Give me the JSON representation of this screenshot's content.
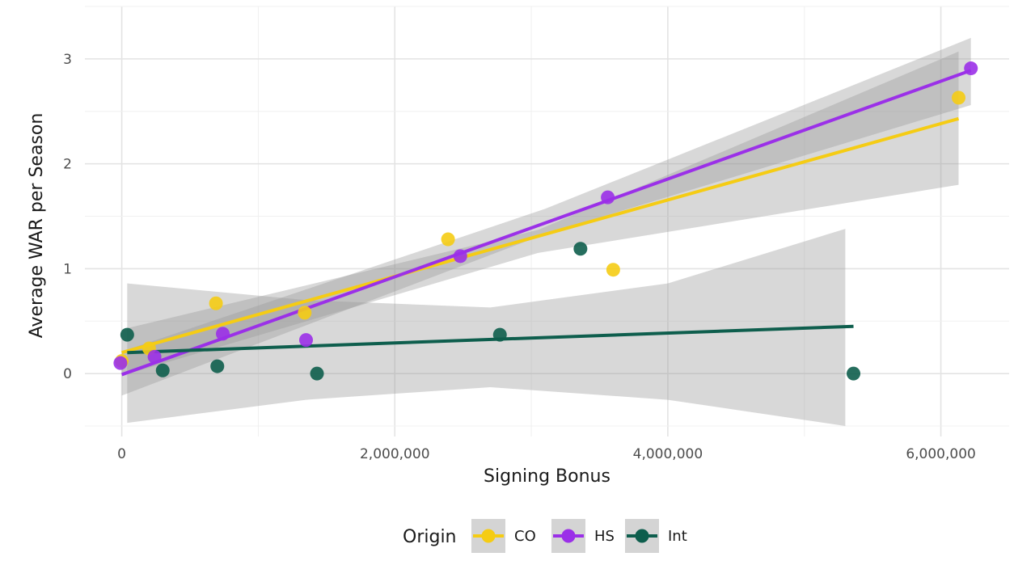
{
  "chart_data": {
    "type": "scatter",
    "xlabel": "Signing Bonus",
    "ylabel": "Average WAR per Season",
    "xlim": [
      -270000,
      6500000
    ],
    "ylim": [
      -0.6,
      3.5
    ],
    "xticks": [
      0,
      2000000,
      4000000,
      6000000
    ],
    "xtick_labels": [
      "0",
      "2,000,000",
      "4,000,000",
      "6,000,000"
    ],
    "yticks": [
      0,
      1,
      2,
      3
    ],
    "ytick_labels": [
      "0",
      "1",
      "2",
      "3"
    ],
    "grid": true,
    "legend": {
      "title": "Origin",
      "placement": "bottom",
      "entries": [
        "CO",
        "HS",
        "Int"
      ]
    },
    "series": [
      {
        "name": "CO",
        "color": "#f5cc14",
        "points": [
          {
            "x": 0,
            "y": 0.12
          },
          {
            "x": 200000,
            "y": 0.24
          },
          {
            "x": 690000,
            "y": 0.67
          },
          {
            "x": 1340000,
            "y": 0.58
          },
          {
            "x": 2390000,
            "y": 1.28
          },
          {
            "x": 3600000,
            "y": 0.99
          },
          {
            "x": 6130000,
            "y": 2.63
          }
        ],
        "fit": {
          "x": [
            0,
            6130000
          ],
          "y": [
            0.2,
            2.43
          ]
        },
        "band": {
          "x": [
            0,
            3050000,
            6130000
          ],
          "lower": [
            -0.02,
            1.15,
            1.8
          ],
          "upper": [
            0.42,
            1.37,
            3.07
          ]
        }
      },
      {
        "name": "HS",
        "color": "#9b30e8",
        "points": [
          {
            "x": -10000,
            "y": 0.1
          },
          {
            "x": 240000,
            "y": 0.16
          },
          {
            "x": 740000,
            "y": 0.38
          },
          {
            "x": 1350000,
            "y": 0.32
          },
          {
            "x": 2480000,
            "y": 1.12
          },
          {
            "x": 3560000,
            "y": 1.68
          },
          {
            "x": 6220000,
            "y": 2.91
          }
        ],
        "fit": {
          "x": [
            0,
            6220000
          ],
          "y": [
            -0.01,
            2.89
          ]
        },
        "band": {
          "x": [
            0,
            3100000,
            6220000
          ],
          "lower": [
            -0.21,
            1.33,
            2.56
          ],
          "upper": [
            0.21,
            1.57,
            3.2
          ]
        }
      },
      {
        "name": "Int",
        "color": "#0e5e4d",
        "points": [
          {
            "x": 40000,
            "y": 0.37
          },
          {
            "x": 300000,
            "y": 0.03
          },
          {
            "x": 700000,
            "y": 0.07
          },
          {
            "x": 1430000,
            "y": 0.0
          },
          {
            "x": 2770000,
            "y": 0.37
          },
          {
            "x": 3360000,
            "y": 1.19
          },
          {
            "x": 5360000,
            "y": 0.0
          }
        ],
        "fit": {
          "x": [
            40000,
            5360000
          ],
          "y": [
            0.2,
            0.45
          ]
        },
        "band": {
          "x": [
            40000,
            1350000,
            2700000,
            4000000,
            5300000
          ],
          "lower": [
            -0.47,
            -0.25,
            -0.13,
            -0.25,
            -0.5
          ],
          "upper": [
            0.86,
            0.7,
            0.63,
            0.86,
            1.38
          ]
        }
      }
    ]
  }
}
